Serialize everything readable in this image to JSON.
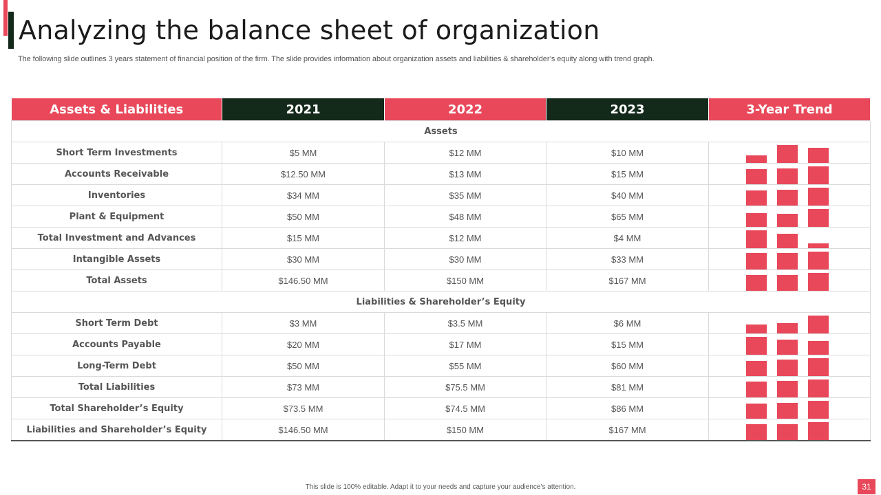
{
  "slide": {
    "title": "Analyzing the balance sheet of organization",
    "subtitle": "The following slide outlines 3 years statement of financial position of the firm. The slide provides information about organization assets and liabilities & shareholder’s equity along with trend graph.",
    "footer": "This slide is 100% editable.  Adapt it to your needs and capture your audience’s attention.",
    "page_number": "31"
  },
  "colors": {
    "accent": "#e8485a",
    "dark": "#13291a"
  },
  "table": {
    "headers": [
      "Assets & Liabilities",
      "2021",
      "2022",
      "2023",
      "3-Year Trend"
    ],
    "sections": [
      {
        "title": "Assets",
        "rows": [
          {
            "label": "Short Term Investments",
            "values": [
              "$5 MM",
              "$12 MM",
              "$10 MM"
            ],
            "trend": [
              5,
              12,
              10
            ]
          },
          {
            "label": "Accounts Receivable",
            "values": [
              "$12.50 MM",
              "$13 MM",
              "$15 MM"
            ],
            "trend": [
              12.5,
              13,
              15
            ]
          },
          {
            "label": "Inventories",
            "values": [
              "$34 MM",
              "$35 MM",
              "$40 MM"
            ],
            "trend": [
              34,
              35,
              40
            ]
          },
          {
            "label": "Plant & Equipment",
            "values": [
              "$50 MM",
              "$48 MM",
              "$65 MM"
            ],
            "trend": [
              50,
              48,
              65
            ]
          },
          {
            "label": "Total Investment and Advances",
            "values": [
              "$15 MM",
              "$12 MM",
              "$4 MM"
            ],
            "trend": [
              15,
              12,
              4
            ]
          },
          {
            "label": "Intangible Assets",
            "values": [
              "$30 MM",
              "$30 MM",
              "$33 MM"
            ],
            "trend": [
              30,
              30,
              33
            ]
          },
          {
            "label": "Total Assets",
            "values": [
              "$146.50 MM",
              "$150 MM",
              "$167 MM"
            ],
            "trend": [
              146.5,
              150,
              167
            ]
          }
        ]
      },
      {
        "title": "Liabilities & Shareholder’s Equity",
        "rows": [
          {
            "label": "Short Term Debt",
            "values": [
              "$3 MM",
              "$3.5 MM",
              "$6 MM"
            ],
            "trend": [
              3,
              3.5,
              6
            ]
          },
          {
            "label": "Accounts Payable",
            "values": [
              "$20 MM",
              "$17 MM",
              "$15 MM"
            ],
            "trend": [
              20,
              17,
              15
            ]
          },
          {
            "label": "Long-Term Debt",
            "values": [
              "$50 MM",
              "$55 MM",
              "$60 MM"
            ],
            "trend": [
              50,
              55,
              60
            ]
          },
          {
            "label": "Total Liabilities",
            "values": [
              "$73 MM",
              "$75.5 MM",
              "$81 MM"
            ],
            "trend": [
              73,
              75.5,
              81
            ]
          },
          {
            "label": "Total Shareholder’s Equity",
            "values": [
              "$73.5 MM",
              "$74.5 MM",
              "$86 MM"
            ],
            "trend": [
              73.5,
              74.5,
              86
            ]
          },
          {
            "label": "Liabilities and Shareholder’s Equity",
            "values": [
              "$146.50 MM",
              "$150 MM",
              "$167 MM"
            ],
            "trend": [
              146.5,
              150,
              167
            ]
          }
        ]
      }
    ]
  }
}
